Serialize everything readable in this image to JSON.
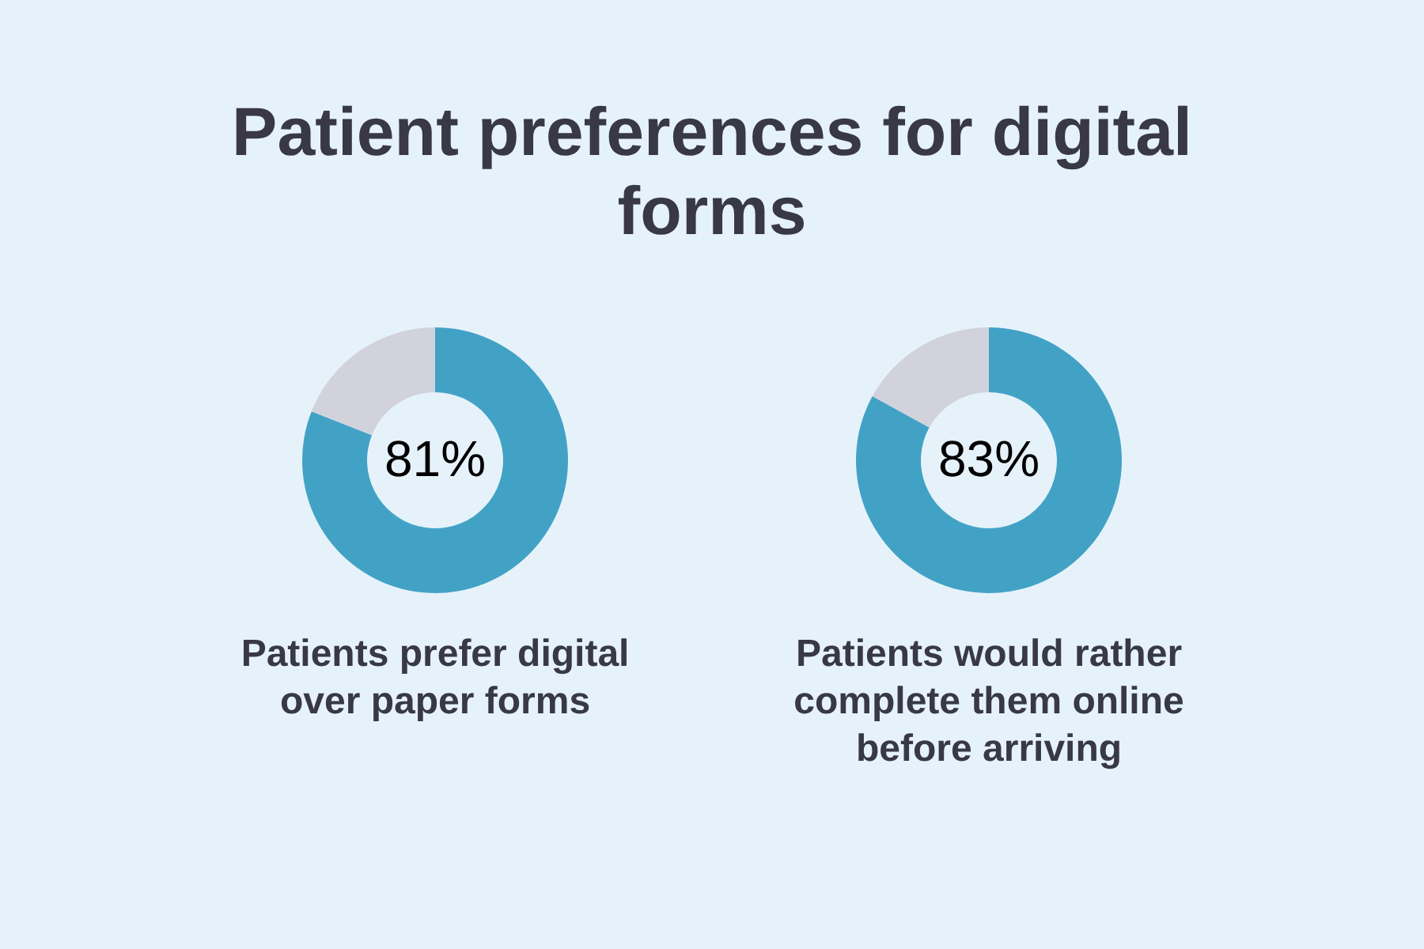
{
  "chart_data": [
    {
      "type": "donut",
      "title": "Patient preferences for digital forms",
      "categories": [
        null,
        null
      ],
      "values": [
        81,
        19
      ],
      "colors": [
        "#42a2c6",
        "#d1d2db"
      ],
      "value_labels": [
        "81%",
        null
      ],
      "annotations": [
        "Patients prefer digital over paper forms"
      ]
    },
    {
      "type": "donut",
      "categories": [
        null,
        null
      ],
      "values": [
        83,
        17
      ],
      "colors": [
        "#42a2c6",
        "#d1d2db"
      ],
      "value_labels": [
        "83%",
        null
      ],
      "annotations": [
        "Patients would rather complete them online before arriving"
      ]
    }
  ]
}
